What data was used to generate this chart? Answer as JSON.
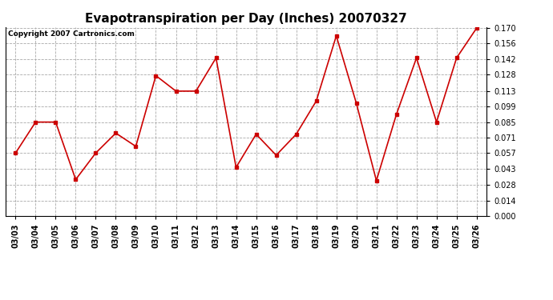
{
  "title": "Evapotranspiration per Day (Inches) 20070327",
  "copyright_text": "Copyright 2007 Cartronics.com",
  "dates": [
    "03/03",
    "03/04",
    "03/05",
    "03/06",
    "03/07",
    "03/08",
    "03/09",
    "03/10",
    "03/11",
    "03/12",
    "03/13",
    "03/14",
    "03/15",
    "03/16",
    "03/17",
    "03/18",
    "03/19",
    "03/20",
    "03/21",
    "03/22",
    "03/23",
    "03/24",
    "03/25",
    "03/26"
  ],
  "values": [
    0.057,
    0.085,
    0.085,
    0.033,
    0.057,
    0.075,
    0.063,
    0.127,
    0.113,
    0.113,
    0.143,
    0.044,
    0.074,
    0.055,
    0.074,
    0.104,
    0.163,
    0.102,
    0.032,
    0.092,
    0.143,
    0.085,
    0.143,
    0.17
  ],
  "line_color": "#cc0000",
  "marker": "s",
  "marker_size": 3,
  "ylim": [
    0.0,
    0.17
  ],
  "yticks": [
    0.0,
    0.014,
    0.028,
    0.043,
    0.057,
    0.071,
    0.085,
    0.099,
    0.113,
    0.128,
    0.142,
    0.156,
    0.17
  ],
  "bg_color": "#ffffff",
  "grid_color": "#aaaaaa",
  "title_fontsize": 11,
  "tick_fontsize": 7,
  "copyright_fontsize": 6.5
}
